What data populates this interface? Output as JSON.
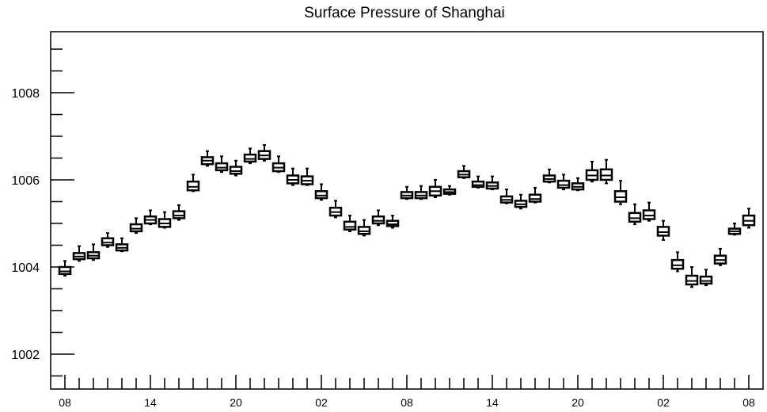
{
  "chart_data": {
    "type": "box",
    "title": "Surface Pressure of Shanghai",
    "xlabel": "",
    "ylabel": "",
    "y_tick_labels": [
      "1002",
      "1004",
      "1006",
      "1008"
    ],
    "y_ticks": [
      1002,
      1004,
      1006,
      1008
    ],
    "ylim": [
      1001.2,
      1009.4
    ],
    "x_tick_labels": [
      "08",
      "14",
      "20",
      "02",
      "08",
      "14",
      "20",
      "02",
      "08"
    ],
    "x_tick_hours": [
      0,
      6,
      12,
      18,
      24,
      30,
      36,
      42,
      48
    ],
    "xlim": [
      -1,
      49
    ],
    "grid": false,
    "legend": "none",
    "colors": {
      "box_edge": "#000000",
      "box_fill": "#ffffff"
    },
    "boxes": [
      {
        "hour": 0,
        "min": 1003.8,
        "q1": 1003.84,
        "median": 1003.9,
        "q3": 1004.0,
        "max": 1004.14
      },
      {
        "hour": 1,
        "min": 1004.14,
        "q1": 1004.18,
        "median": 1004.24,
        "q3": 1004.32,
        "max": 1004.48
      },
      {
        "hour": 2,
        "min": 1004.16,
        "q1": 1004.2,
        "median": 1004.26,
        "q3": 1004.34,
        "max": 1004.52
      },
      {
        "hour": 3,
        "min": 1004.46,
        "q1": 1004.5,
        "median": 1004.56,
        "q3": 1004.66,
        "max": 1004.78
      },
      {
        "hour": 4,
        "min": 1004.36,
        "q1": 1004.38,
        "median": 1004.44,
        "q3": 1004.52,
        "max": 1004.66
      },
      {
        "hour": 5,
        "min": 1004.78,
        "q1": 1004.82,
        "median": 1004.88,
        "q3": 1004.98,
        "max": 1005.12
      },
      {
        "hour": 6,
        "min": 1004.98,
        "q1": 1005.0,
        "median": 1005.08,
        "q3": 1005.16,
        "max": 1005.3
      },
      {
        "hour": 7,
        "min": 1004.9,
        "q1": 1004.92,
        "median": 1005.0,
        "q3": 1005.1,
        "max": 1005.26
      },
      {
        "hour": 8,
        "min": 1005.08,
        "q1": 1005.12,
        "median": 1005.18,
        "q3": 1005.28,
        "max": 1005.42
      },
      {
        "hour": 9,
        "min": 1005.74,
        "q1": 1005.76,
        "median": 1005.84,
        "q3": 1005.96,
        "max": 1006.12
      },
      {
        "hour": 10,
        "min": 1006.32,
        "q1": 1006.36,
        "median": 1006.44,
        "q3": 1006.52,
        "max": 1006.66
      },
      {
        "hour": 11,
        "min": 1006.18,
        "q1": 1006.22,
        "median": 1006.28,
        "q3": 1006.38,
        "max": 1006.54
      },
      {
        "hour": 12,
        "min": 1006.1,
        "q1": 1006.14,
        "median": 1006.2,
        "q3": 1006.3,
        "max": 1006.44
      },
      {
        "hour": 13,
        "min": 1006.38,
        "q1": 1006.42,
        "median": 1006.48,
        "q3": 1006.58,
        "max": 1006.72
      },
      {
        "hour": 14,
        "min": 1006.44,
        "q1": 1006.48,
        "median": 1006.56,
        "q3": 1006.66,
        "max": 1006.8
      },
      {
        "hour": 15,
        "min": 1006.18,
        "q1": 1006.2,
        "median": 1006.28,
        "q3": 1006.38,
        "max": 1006.54
      },
      {
        "hour": 16,
        "min": 1005.88,
        "q1": 1005.92,
        "median": 1006.0,
        "q3": 1006.1,
        "max": 1006.26
      },
      {
        "hour": 17,
        "min": 1005.88,
        "q1": 1005.9,
        "median": 1005.98,
        "q3": 1006.08,
        "max": 1006.26
      },
      {
        "hour": 18,
        "min": 1005.54,
        "q1": 1005.58,
        "median": 1005.64,
        "q3": 1005.74,
        "max": 1005.9
      },
      {
        "hour": 19,
        "min": 1005.14,
        "q1": 1005.18,
        "median": 1005.26,
        "q3": 1005.36,
        "max": 1005.52
      },
      {
        "hour": 20,
        "min": 1004.82,
        "q1": 1004.86,
        "median": 1004.92,
        "q3": 1005.04,
        "max": 1005.18
      },
      {
        "hour": 21,
        "min": 1004.72,
        "q1": 1004.76,
        "median": 1004.82,
        "q3": 1004.92,
        "max": 1005.08
      },
      {
        "hour": 22,
        "min": 1004.96,
        "q1": 1005.0,
        "median": 1005.06,
        "q3": 1005.16,
        "max": 1005.3
      },
      {
        "hour": 23,
        "min": 1004.9,
        "q1": 1004.94,
        "median": 1004.98,
        "q3": 1005.06,
        "max": 1005.18
      },
      {
        "hour": 24,
        "min": 1005.56,
        "q1": 1005.58,
        "median": 1005.64,
        "q3": 1005.72,
        "max": 1005.84
      },
      {
        "hour": 25,
        "min": 1005.56,
        "q1": 1005.58,
        "median": 1005.64,
        "q3": 1005.72,
        "max": 1005.86
      },
      {
        "hour": 26,
        "min": 1005.6,
        "q1": 1005.64,
        "median": 1005.74,
        "q3": 1005.84,
        "max": 1006.0
      },
      {
        "hour": 27,
        "min": 1005.66,
        "q1": 1005.68,
        "median": 1005.72,
        "q3": 1005.78,
        "max": 1005.86
      },
      {
        "hour": 28,
        "min": 1006.04,
        "q1": 1006.06,
        "median": 1006.12,
        "q3": 1006.2,
        "max": 1006.32
      },
      {
        "hour": 29,
        "min": 1005.82,
        "q1": 1005.84,
        "median": 1005.88,
        "q3": 1005.96,
        "max": 1006.08
      },
      {
        "hour": 30,
        "min": 1005.78,
        "q1": 1005.8,
        "median": 1005.86,
        "q3": 1005.94,
        "max": 1006.08
      },
      {
        "hour": 31,
        "min": 1005.46,
        "q1": 1005.48,
        "median": 1005.54,
        "q3": 1005.62,
        "max": 1005.78
      },
      {
        "hour": 32,
        "min": 1005.34,
        "q1": 1005.38,
        "median": 1005.44,
        "q3": 1005.52,
        "max": 1005.66
      },
      {
        "hour": 33,
        "min": 1005.48,
        "q1": 1005.5,
        "median": 1005.56,
        "q3": 1005.66,
        "max": 1005.82
      },
      {
        "hour": 34,
        "min": 1005.94,
        "q1": 1005.96,
        "median": 1006.02,
        "q3": 1006.1,
        "max": 1006.24
      },
      {
        "hour": 35,
        "min": 1005.78,
        "q1": 1005.82,
        "median": 1005.88,
        "q3": 1005.98,
        "max": 1006.12
      },
      {
        "hour": 36,
        "min": 1005.76,
        "q1": 1005.78,
        "median": 1005.84,
        "q3": 1005.92,
        "max": 1006.04
      },
      {
        "hour": 37,
        "min": 1005.96,
        "q1": 1006.0,
        "median": 1006.1,
        "q3": 1006.22,
        "max": 1006.42
      },
      {
        "hour": 38,
        "min": 1005.92,
        "q1": 1006.0,
        "median": 1006.1,
        "q3": 1006.24,
        "max": 1006.46
      },
      {
        "hour": 39,
        "min": 1005.44,
        "q1": 1005.5,
        "median": 1005.6,
        "q3": 1005.74,
        "max": 1005.98
      },
      {
        "hour": 40,
        "min": 1004.98,
        "q1": 1005.04,
        "median": 1005.12,
        "q3": 1005.24,
        "max": 1005.44
      },
      {
        "hour": 41,
        "min": 1005.06,
        "q1": 1005.1,
        "median": 1005.18,
        "q3": 1005.3,
        "max": 1005.48
      },
      {
        "hour": 42,
        "min": 1004.62,
        "q1": 1004.72,
        "median": 1004.8,
        "q3": 1004.92,
        "max": 1005.06
      },
      {
        "hour": 43,
        "min": 1003.9,
        "q1": 1003.96,
        "median": 1004.04,
        "q3": 1004.16,
        "max": 1004.34
      },
      {
        "hour": 44,
        "min": 1003.54,
        "q1": 1003.6,
        "median": 1003.68,
        "q3": 1003.8,
        "max": 1004.0
      },
      {
        "hour": 45,
        "min": 1003.58,
        "q1": 1003.62,
        "median": 1003.68,
        "q3": 1003.78,
        "max": 1003.94
      },
      {
        "hour": 46,
        "min": 1004.04,
        "q1": 1004.08,
        "median": 1004.16,
        "q3": 1004.26,
        "max": 1004.42
      },
      {
        "hour": 47,
        "min": 1004.74,
        "q1": 1004.76,
        "median": 1004.82,
        "q3": 1004.88,
        "max": 1005.0
      },
      {
        "hour": 48,
        "min": 1004.9,
        "q1": 1004.96,
        "median": 1005.06,
        "q3": 1005.18,
        "max": 1005.34
      }
    ]
  }
}
